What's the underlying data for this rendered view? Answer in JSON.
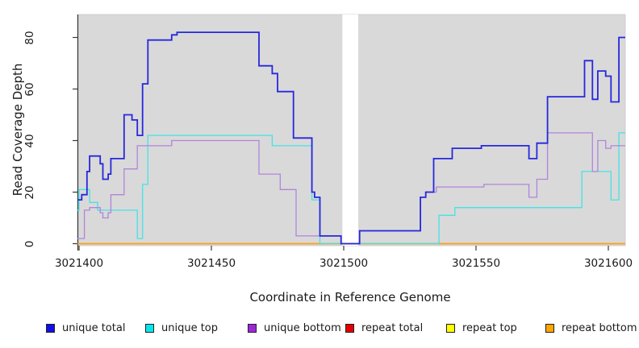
{
  "chart_data": {
    "type": "line",
    "subtype": "step-coverage",
    "title": "",
    "xlabel": "Coordinate in Reference Genome",
    "ylabel": "Read Coverage Depth",
    "xlim": [
      3021399,
      3021606
    ],
    "ylim": [
      0,
      88
    ],
    "x_tick_values": [
      3021400,
      3021450,
      3021500,
      3021550,
      3021600
    ],
    "x_tick_labels": [
      "3021400",
      "3021450",
      "3021500",
      "3021550",
      "3021600"
    ],
    "y_tick_values": [
      0,
      20,
      40,
      60,
      80
    ],
    "y_tick_labels": [
      "0",
      "20",
      "40",
      "60",
      "80"
    ],
    "grid": false,
    "legend_position": "bottom",
    "panel_bg": "#d9d9d9",
    "masked_region": {
      "x_start": 3021499.5,
      "x_end": 3021505.5,
      "color": "#ffffff"
    },
    "series": [
      {
        "name": "unique total",
        "color": "#2727dd",
        "line_width": 1.8,
        "steps": [
          [
            3021399,
            17
          ],
          [
            3021401,
            19
          ],
          [
            3021403,
            28
          ],
          [
            3021404,
            34
          ],
          [
            3021408,
            31
          ],
          [
            3021409,
            25
          ],
          [
            3021411,
            27
          ],
          [
            3021412,
            33
          ],
          [
            3021417,
            50
          ],
          [
            3021420,
            48
          ],
          [
            3021422,
            42
          ],
          [
            3021424,
            62
          ],
          [
            3021426,
            79
          ],
          [
            3021435,
            81
          ],
          [
            3021437,
            82
          ],
          [
            3021468,
            69
          ],
          [
            3021473,
            66
          ],
          [
            3021475,
            59
          ],
          [
            3021481,
            41
          ],
          [
            3021488,
            20
          ],
          [
            3021489,
            18
          ],
          [
            3021491,
            3
          ],
          [
            3021499,
            0
          ],
          [
            3021506,
            5
          ],
          [
            3021529,
            18
          ],
          [
            3021531,
            20
          ],
          [
            3021534,
            33
          ],
          [
            3021541,
            37
          ],
          [
            3021552,
            38
          ],
          [
            3021570,
            33
          ],
          [
            3021573,
            39
          ],
          [
            3021577,
            57
          ],
          [
            3021591,
            71
          ],
          [
            3021594,
            56
          ],
          [
            3021596,
            67
          ],
          [
            3021599,
            65
          ],
          [
            3021601,
            55
          ],
          [
            3021604,
            80
          ]
        ]
      },
      {
        "name": "unique top",
        "color": "#45e2e6",
        "line_width": 1.3,
        "steps": [
          [
            3021399,
            13
          ],
          [
            3021400,
            21
          ],
          [
            3021404,
            16
          ],
          [
            3021407,
            13
          ],
          [
            3021422,
            2
          ],
          [
            3021424,
            23
          ],
          [
            3021426,
            42
          ],
          [
            3021473,
            38
          ],
          [
            3021488,
            17
          ],
          [
            3021491,
            0
          ],
          [
            3021536,
            11
          ],
          [
            3021542,
            14
          ],
          [
            3021590,
            28
          ],
          [
            3021601,
            17
          ],
          [
            3021604,
            43
          ]
        ]
      },
      {
        "name": "unique bottom",
        "color": "#b184db",
        "line_width": 1.3,
        "steps": [
          [
            3021399,
            2
          ],
          [
            3021402,
            13
          ],
          [
            3021404,
            14
          ],
          [
            3021408,
            12
          ],
          [
            3021409,
            10
          ],
          [
            3021411,
            12
          ],
          [
            3021412,
            19
          ],
          [
            3021417,
            29
          ],
          [
            3021422,
            38
          ],
          [
            3021435,
            40
          ],
          [
            3021468,
            27
          ],
          [
            3021476,
            21
          ],
          [
            3021482,
            3
          ],
          [
            3021499,
            0
          ],
          [
            3021506,
            5
          ],
          [
            3021529,
            18
          ],
          [
            3021531,
            20
          ],
          [
            3021535,
            22
          ],
          [
            3021553,
            23
          ],
          [
            3021570,
            18
          ],
          [
            3021573,
            25
          ],
          [
            3021577,
            43
          ],
          [
            3021594,
            28
          ],
          [
            3021596,
            40
          ],
          [
            3021599,
            37
          ],
          [
            3021601,
            38
          ]
        ]
      },
      {
        "name": "repeat total",
        "color": "#e30000",
        "line_width": 1.3,
        "steps": [
          [
            3021399,
            0
          ]
        ]
      },
      {
        "name": "repeat top",
        "color": "#fdfd00",
        "line_width": 1.3,
        "steps": [
          [
            3021399,
            0
          ]
        ]
      },
      {
        "name": "repeat bottom",
        "color": "#ff9d14",
        "line_width": 1.6,
        "steps": [
          [
            3021399,
            0
          ]
        ]
      }
    ],
    "legend": [
      {
        "label": "unique total",
        "color": "#0f0fe6"
      },
      {
        "label": "unique top",
        "color": "#00e8ee"
      },
      {
        "label": "unique bottom",
        "color": "#9c27d9"
      },
      {
        "label": "repeat total",
        "color": "#e30000"
      },
      {
        "label": "repeat top",
        "color": "#ffff00"
      },
      {
        "label": "repeat bottom",
        "color": "#ffa500"
      }
    ]
  }
}
